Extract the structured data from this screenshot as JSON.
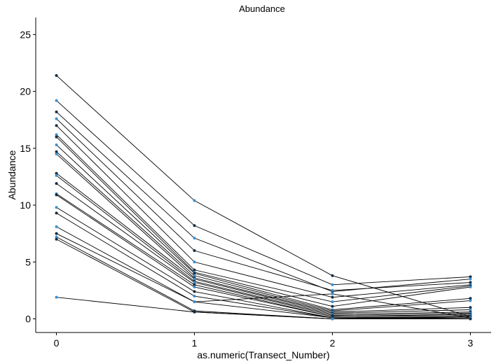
{
  "chart_data": {
    "type": "line",
    "title": "Abundance",
    "xlabel": "as.numeric(Transect_Number)",
    "ylabel": "Abundance",
    "x_ticks": [
      0,
      1,
      2,
      3
    ],
    "y_ticks": [
      0,
      5,
      10,
      15,
      20,
      25
    ],
    "xlim": [
      -0.15,
      3.15
    ],
    "ylim": [
      -1.2,
      26.5
    ],
    "grid": false,
    "legend": "none",
    "colors": {
      "line": "#000000",
      "point_dark": "#1a2b3c",
      "point_light": "#3a8fd0"
    },
    "series": [
      {
        "values": [
          21.4,
          10.4,
          3.8,
          0.2
        ]
      },
      {
        "values": [
          19.2,
          8.2,
          3.0,
          3.7
        ]
      },
      {
        "values": [
          18.2,
          7.1,
          2.4,
          3.5
        ]
      },
      {
        "values": [
          17.6,
          6.0,
          2.5,
          3.2
        ]
      },
      {
        "values": [
          17.0,
          5.0,
          1.9,
          3.0
        ]
      },
      {
        "values": [
          16.2,
          4.3,
          1.5,
          2.9
        ]
      },
      {
        "values": [
          16.0,
          4.1,
          1.1,
          2.8
        ]
      },
      {
        "values": [
          15.3,
          4.0,
          0.8,
          1.8
        ]
      },
      {
        "values": [
          14.7,
          3.8,
          0.7,
          1.6
        ]
      },
      {
        "values": [
          14.5,
          3.6,
          0.6,
          1.0
        ]
      },
      {
        "values": [
          12.8,
          3.5,
          0.5,
          0.8
        ]
      },
      {
        "values": [
          12.6,
          3.3,
          0.4,
          0.6
        ]
      },
      {
        "values": [
          11.9,
          3.2,
          0.3,
          0.5
        ]
      },
      {
        "values": [
          11.0,
          3.0,
          0.2,
          0.4
        ]
      },
      {
        "values": [
          10.9,
          2.8,
          0.2,
          0.3
        ]
      },
      {
        "values": [
          9.8,
          2.4,
          0.1,
          0.2
        ]
      },
      {
        "values": [
          9.3,
          2.0,
          0.1,
          0.1
        ]
      },
      {
        "values": [
          8.1,
          1.5,
          2.2,
          0.1
        ]
      },
      {
        "values": [
          7.5,
          1.5,
          0.1,
          0.0
        ]
      },
      {
        "values": [
          7.2,
          0.7,
          0.0,
          0.2
        ]
      },
      {
        "values": [
          7.0,
          0.6,
          0.0,
          0.1
        ]
      },
      {
        "values": [
          1.9,
          0.6,
          0.0,
          0.0
        ]
      }
    ]
  }
}
